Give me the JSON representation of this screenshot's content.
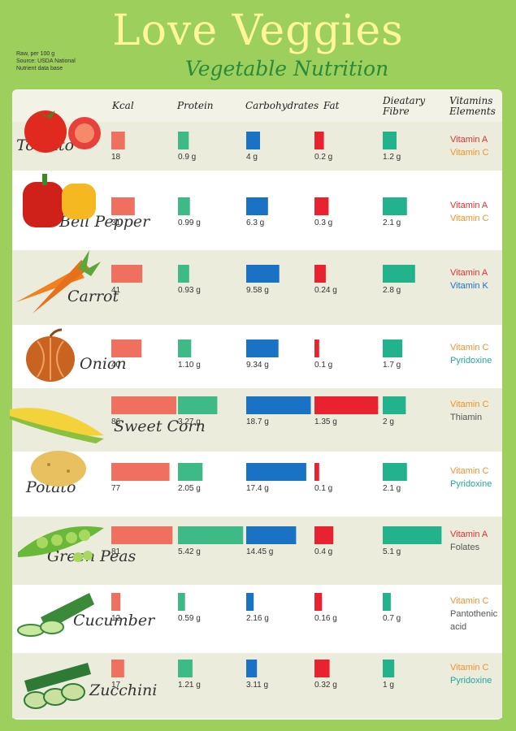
{
  "note": [
    "Raw, per 100 g",
    "Source: USDA National",
    "Nutrient data base"
  ],
  "title": "Love Veggies",
  "subtitle": "Vegetable Nutrition",
  "headers": {
    "kcal": "Kcal",
    "protein": "Protein",
    "carbs": "Carbohydrates",
    "fat": "Fat",
    "fibre": [
      "Dieatary",
      "Fibre"
    ],
    "vitamins": [
      "Vitamins",
      "Elements"
    ]
  },
  "colors": {
    "background": "#9ccf5c",
    "panel": "#f2f2e6",
    "kcal": "#f07060",
    "protein": "#3dba85",
    "carbs": "#1a72c4",
    "fat": "#e8222e",
    "fibre": "#22b38c",
    "title": "#fff59a",
    "subtitle": "#2a8a3a"
  },
  "chart_data": {
    "type": "table",
    "columns": [
      "Kcal",
      "Protein",
      "Carbohydrates",
      "Fat",
      "Dieatary Fibre",
      "Vitamins Elements"
    ],
    "rows": [
      {
        "name": "Tomato",
        "kcal": 18,
        "kcal_label": "18",
        "protein": 0.9,
        "protein_label": "0.9 g",
        "carbs": 4,
        "carbs_label": "4 g",
        "fat": 0.2,
        "fat_label": "0.2 g",
        "fibre": 1.2,
        "fibre_label": "1.2 g",
        "vitamins": [
          {
            "text": "Vitamin A",
            "color": "#e03030"
          },
          {
            "text": "Vitamin C",
            "color": "#f0922a"
          }
        ]
      },
      {
        "name": "Bell Pepper",
        "kcal": 31,
        "kcal_label": "31",
        "protein": 0.99,
        "protein_label": "0.99 g",
        "carbs": 6.3,
        "carbs_label": "6.3 g",
        "fat": 0.3,
        "fat_label": "0.3 g",
        "fibre": 2.1,
        "fibre_label": "2.1 g",
        "vitamins": [
          {
            "text": "Vitamin A",
            "color": "#e03030"
          },
          {
            "text": "Vitamin C",
            "color": "#f0922a"
          }
        ]
      },
      {
        "name": "Carrot",
        "kcal": 41,
        "kcal_label": "41",
        "protein": 0.93,
        "protein_label": "0.93 g",
        "carbs": 9.58,
        "carbs_label": "9.58 g",
        "fat": 0.24,
        "fat_label": "0.24 g",
        "fibre": 2.8,
        "fibre_label": "2.8 g",
        "vitamins": [
          {
            "text": "Vitamin A",
            "color": "#e03030"
          },
          {
            "text": "Vitamin K",
            "color": "#1a72c4"
          }
        ]
      },
      {
        "name": "Onion",
        "kcal": 40,
        "kcal_label": "40",
        "protein": 1.1,
        "protein_label": "1.10 g",
        "carbs": 9.34,
        "carbs_label": "9.34 g",
        "fat": 0.1,
        "fat_label": "0.1 g",
        "fibre": 1.7,
        "fibre_label": "1.7 g",
        "vitamins": [
          {
            "text": "Vitamin C",
            "color": "#f0922a"
          },
          {
            "text": "Pyridoxine",
            "color": "#1fa89a"
          }
        ]
      },
      {
        "name": "Sweet Corn",
        "kcal": 86,
        "kcal_label": "86",
        "protein": 3.27,
        "protein_label": "3.27 g",
        "carbs": 18.7,
        "carbs_label": "18.7 g",
        "fat": 1.35,
        "fat_label": "1.35 g",
        "fibre": 2,
        "fibre_label": "2 g",
        "vitamins": [
          {
            "text": "Vitamin C",
            "color": "#f0922a"
          },
          {
            "text": "Thiamin",
            "color": "#555555"
          }
        ]
      },
      {
        "name": "Potato",
        "kcal": 77,
        "kcal_label": "77",
        "protein": 2.05,
        "protein_label": "2.05 g",
        "carbs": 17.4,
        "carbs_label": "17.4 g",
        "fat": 0.1,
        "fat_label": "0.1 g",
        "fibre": 2.1,
        "fibre_label": "2.1 g",
        "vitamins": [
          {
            "text": "Vitamin C",
            "color": "#f0922a"
          },
          {
            "text": "Pyridoxine",
            "color": "#1fa89a"
          }
        ]
      },
      {
        "name": "Green Peas",
        "kcal": 81,
        "kcal_label": "81",
        "protein": 5.42,
        "protein_label": "5.42 g",
        "carbs": 14.45,
        "carbs_label": "14.45 g",
        "fat": 0.4,
        "fat_label": "0.4 g",
        "fibre": 5.1,
        "fibre_label": "5.1 g",
        "vitamins": [
          {
            "text": "Vitamin A",
            "color": "#e03030"
          },
          {
            "text": "Folates",
            "color": "#555555"
          }
        ]
      },
      {
        "name": "Cucumber",
        "kcal": 12,
        "kcal_label": "12",
        "protein": 0.59,
        "protein_label": "0.59 g",
        "carbs": 2.16,
        "carbs_label": "2.16 g",
        "fat": 0.16,
        "fat_label": "0.16 g",
        "fibre": 0.7,
        "fibre_label": "0.7 g",
        "vitamins": [
          {
            "text": "Vitamin C",
            "color": "#f0922a"
          },
          {
            "text": "Pantothenic",
            "color": "#555555"
          },
          {
            "text": "acid",
            "color": "#555555"
          }
        ]
      },
      {
        "name": "Zucchini",
        "kcal": 17,
        "kcal_label": "17",
        "protein": 1.21,
        "protein_label": "1.21 g",
        "carbs": 3.11,
        "carbs_label": "3.11 g",
        "fat": 0.32,
        "fat_label": "0.32 g",
        "fibre": 1,
        "fibre_label": "1 g",
        "vitamins": [
          {
            "text": "Vitamin C",
            "color": "#f0922a"
          },
          {
            "text": "Pyridoxine",
            "color": "#1fa89a"
          }
        ]
      }
    ]
  }
}
